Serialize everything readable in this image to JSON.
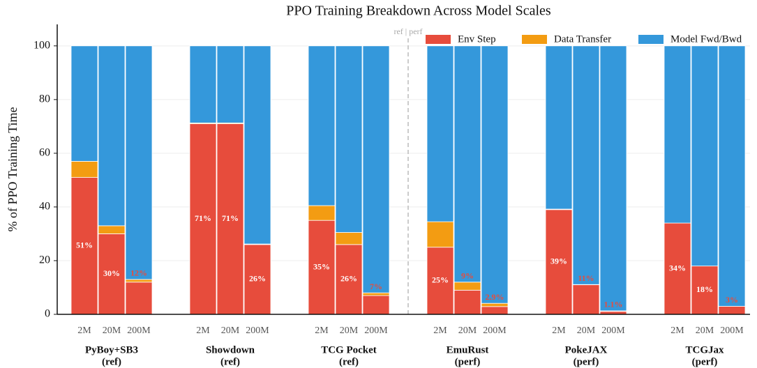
{
  "chart_data": {
    "type": "stacked_bar",
    "title": "PPO Training Breakdown Across Model Scales",
    "y_label": "% of PPO Training Time",
    "annotation": "ref | perf",
    "categories": [
      "2M",
      "20M",
      "200M",
      "2M",
      "20M",
      "200M",
      "2M",
      "20M",
      "200M",
      "2M",
      "20M",
      "200M",
      "2M",
      "20M",
      "200M",
      "2M",
      "20M",
      "200M"
    ],
    "groups": [
      {
        "name": "PyBoy+SB3",
        "note": "(ref)"
      },
      {
        "name": "Showdown",
        "note": "(ref)"
      },
      {
        "name": "TCG Pocket",
        "note": "(ref)"
      },
      {
        "name": "EmuRust",
        "note": "(perf)"
      },
      {
        "name": "PokeJAX",
        "note": "(perf)"
      },
      {
        "name": "TCGJax",
        "note": "(perf)"
      }
    ],
    "series": [
      {
        "name": "Env Step",
        "color": "#e74c3c",
        "values": [
          51,
          30,
          12,
          71,
          71,
          26,
          35,
          26,
          7,
          25,
          9,
          2.9,
          39,
          11,
          1.1,
          34,
          18,
          3
        ],
        "value_labels": [
          "51%",
          "30%",
          "12%",
          "71%",
          "71%",
          "26%",
          "35%",
          "26%",
          "7%",
          "25%",
          "9%",
          "2.9%",
          "39%",
          "11%",
          "1.1%",
          "34%",
          "18%",
          "3%"
        ]
      },
      {
        "name": "Data Transfer",
        "color": "#f39c12",
        "values": [
          6,
          3,
          1,
          0.3,
          0.3,
          0.2,
          5.5,
          4.5,
          1,
          9.5,
          3,
          1.2,
          0.2,
          0.1,
          0.2,
          0,
          0,
          0
        ]
      },
      {
        "name": "Model Fwd/Bwd",
        "color": "#3498db",
        "values": [
          43,
          67,
          87,
          28.7,
          28.7,
          73.8,
          59.5,
          69.5,
          92,
          65.5,
          88,
          95.9,
          60.8,
          88.9,
          98.7,
          66,
          82,
          97
        ]
      }
    ],
    "ylim": [
      0,
      108
    ],
    "yticks": [
      0,
      20,
      40,
      60,
      80,
      100
    ],
    "grid": true,
    "legend": "upper right"
  }
}
